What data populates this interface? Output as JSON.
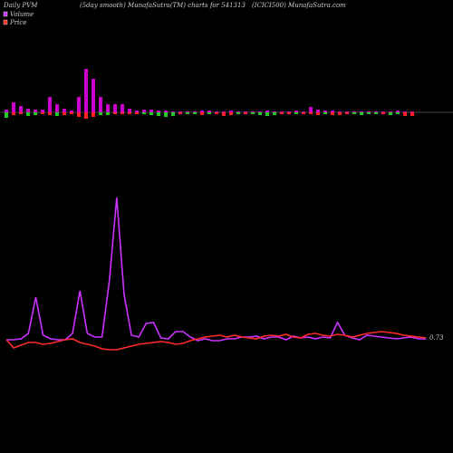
{
  "chart_data": [
    {
      "type": "bar",
      "color": "#cc00cc",
      "ylim": [
        -20,
        60
      ],
      "values": [
        3,
        11,
        7,
        4,
        3,
        3,
        17,
        9,
        4,
        2,
        17,
        48,
        37,
        17,
        9,
        9,
        9,
        4,
        2,
        3,
        3,
        2,
        2,
        1,
        1,
        1,
        1,
        2,
        2,
        1,
        1,
        2,
        1,
        1,
        1,
        1,
        2,
        1,
        1,
        1,
        2,
        1,
        6,
        3,
        2,
        2,
        1,
        1,
        1,
        1,
        1,
        1,
        1,
        1,
        2,
        1,
        1
      ],
      "lower": [
        -6,
        -3,
        -2,
        -4,
        -3,
        -2,
        -3,
        -4,
        -3,
        -2,
        -5,
        -7,
        -5,
        -3,
        -3,
        -2,
        -2,
        -2,
        -2,
        -2,
        -3,
        -4,
        -5,
        -4,
        -2,
        -2,
        -2,
        -3,
        -2,
        -2,
        -4,
        -3,
        -2,
        -2,
        -2,
        -3,
        -4,
        -3,
        -2,
        -2,
        -2,
        -2,
        -2,
        -3,
        -2,
        -3,
        -3,
        -2,
        -2,
        -3,
        -2,
        -2,
        -2,
        -3,
        -2,
        -4,
        -4
      ],
      "lower_colors": [
        "#22cc22",
        "#ff2222",
        "#ff2222",
        "#22cc22",
        "#22cc22",
        "#ff2222",
        "#ff2222",
        "#22cc22",
        "#ff2222",
        "#ff2222",
        "#ff2222",
        "#ff2222",
        "#ff2222",
        "#22cc22",
        "#22cc22",
        "#ff2222",
        "#ff2222",
        "#ff2222",
        "#ff2222",
        "#22cc22",
        "#22cc22",
        "#22cc22",
        "#22cc22",
        "#22cc22",
        "#ff2222",
        "#22cc22",
        "#22cc22",
        "#ff2222",
        "#22cc22",
        "#ff2222",
        "#ff2222",
        "#ff2222",
        "#22cc22",
        "#ff2222",
        "#22cc22",
        "#22cc22",
        "#22cc22",
        "#22cc22",
        "#ff2222",
        "#ff2222",
        "#22cc22",
        "#ff2222",
        "#ff2222",
        "#ff2222",
        "#22cc22",
        "#ff2222",
        "#ff2222",
        "#ff2222",
        "#22cc22",
        "#22cc22",
        "#22cc22",
        "#22cc22",
        "#ff2222",
        "#22cc22",
        "#22cc22",
        "#ff2222",
        "#ff2222"
      ]
    },
    {
      "type": "line",
      "title": "Daily PVM",
      "subtitle": "(5day smooth) MunafaSutra(TM) charts for 541313",
      "source": "(ICICI500) MunafaSutra.com",
      "price_label": "0.73",
      "ylim": [
        0,
        200
      ],
      "series": [
        {
          "name": "Volume",
          "color": "#cc33ff",
          "values": [
            25,
            25,
            26,
            32,
            72,
            30,
            26,
            25,
            25,
            32,
            79,
            32,
            28,
            28,
            90,
            182,
            75,
            30,
            28,
            43,
            44,
            27,
            26,
            34,
            34,
            28,
            24,
            26,
            24,
            24,
            26,
            26,
            28,
            28,
            29,
            26,
            28,
            28,
            25,
            29,
            27,
            28,
            26,
            28,
            27,
            44,
            30,
            27,
            25,
            30,
            29,
            28,
            27,
            26,
            27,
            28,
            26,
            26
          ]
        },
        {
          "name": "Price",
          "color": "#ff2a2a",
          "values": [
            25,
            16,
            19,
            22,
            22,
            20,
            21,
            23,
            25,
            26,
            22,
            20,
            18,
            15,
            14,
            14,
            16,
            18,
            20,
            21,
            22,
            23,
            22,
            20,
            21,
            24,
            26,
            28,
            29,
            30,
            28,
            30,
            28,
            27,
            26,
            29,
            30,
            29,
            31,
            28,
            27,
            31,
            32,
            30,
            29,
            31,
            30,
            28,
            30,
            32,
            33,
            34,
            33,
            32,
            30,
            29,
            28,
            27
          ]
        }
      ]
    }
  ]
}
